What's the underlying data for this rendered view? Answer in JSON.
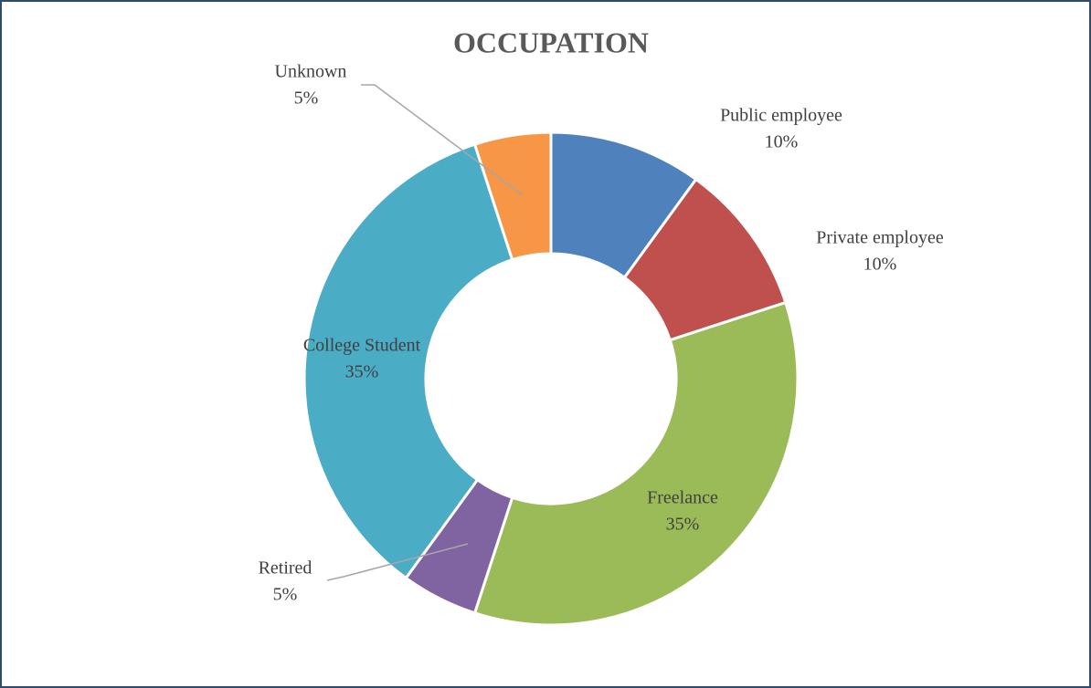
{
  "chart_data": {
    "type": "donut",
    "title": "OCCUPATION",
    "categories": [
      "Public employee",
      "Private employee",
      "Freelance",
      "Retired",
      "College Student",
      "Unknown"
    ],
    "values": [
      10,
      10,
      35,
      5,
      35,
      5
    ],
    "value_labels": [
      "10%",
      "10%",
      "35%",
      "5%",
      "35%",
      "5%"
    ],
    "colors": [
      "#4f81bd",
      "#c0504d",
      "#9bbb59",
      "#8064a2",
      "#4bacc6",
      "#f79646"
    ]
  }
}
